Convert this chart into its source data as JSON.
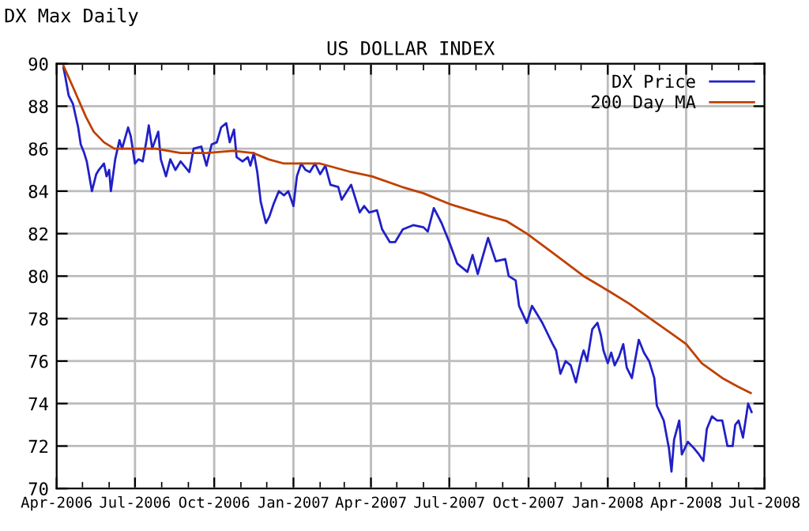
{
  "chart_data": {
    "type": "line",
    "title": "US DOLLAR INDEX",
    "subtitle": "DX Max Daily",
    "xlim": [
      "2006-04-01",
      "2008-07-01"
    ],
    "ylim": [
      70,
      90
    ],
    "yticks": [
      70,
      72,
      74,
      76,
      78,
      80,
      82,
      84,
      86,
      88,
      90
    ],
    "xticks": [
      {
        "value": "2006-04-01",
        "label": "Apr-2006"
      },
      {
        "value": "2006-05-01",
        "label": null
      },
      {
        "value": "2006-06-01",
        "label": null
      },
      {
        "value": "2006-07-01",
        "label": "Jul-2006"
      },
      {
        "value": "2006-08-01",
        "label": null
      },
      {
        "value": "2006-09-01",
        "label": null
      },
      {
        "value": "2006-10-01",
        "label": "Oct-2006"
      },
      {
        "value": "2006-11-01",
        "label": null
      },
      {
        "value": "2006-12-01",
        "label": null
      },
      {
        "value": "2007-01-01",
        "label": "Jan-2007"
      },
      {
        "value": "2007-02-01",
        "label": null
      },
      {
        "value": "2007-03-01",
        "label": null
      },
      {
        "value": "2007-04-01",
        "label": "Apr-2007"
      },
      {
        "value": "2007-05-01",
        "label": null
      },
      {
        "value": "2007-06-01",
        "label": null
      },
      {
        "value": "2007-07-01",
        "label": "Jul-2007"
      },
      {
        "value": "2007-08-01",
        "label": null
      },
      {
        "value": "2007-09-01",
        "label": null
      },
      {
        "value": "2007-10-01",
        "label": "Oct-2007"
      },
      {
        "value": "2007-11-01",
        "label": null
      },
      {
        "value": "2007-12-01",
        "label": null
      },
      {
        "value": "2008-01-01",
        "label": "Jan-2008"
      },
      {
        "value": "2008-02-01",
        "label": null
      },
      {
        "value": "2008-03-01",
        "label": null
      },
      {
        "value": "2008-04-01",
        "label": "Apr-2008"
      },
      {
        "value": "2008-05-01",
        "label": null
      },
      {
        "value": "2008-06-01",
        "label": null
      },
      {
        "value": "2008-07-01",
        "label": "Jul-2008"
      }
    ],
    "grid": true,
    "legend": "top right",
    "marker": "none",
    "line_style": "solid",
    "series": [
      {
        "name": "DX Price",
        "color": "#2020c8",
        "x": [
          "2006-04-09",
          "2006-04-11",
          "2006-04-15",
          "2006-04-20",
          "2006-04-26",
          "2006-04-29",
          "2006-05-03",
          "2006-05-06",
          "2006-05-12",
          "2006-05-17",
          "2006-05-20",
          "2006-05-26",
          "2006-05-29",
          "2006-06-01",
          "2006-06-03",
          "2006-06-08",
          "2006-06-13",
          "2006-06-16",
          "2006-06-23",
          "2006-06-26",
          "2006-07-01",
          "2006-07-05",
          "2006-07-10",
          "2006-07-14",
          "2006-07-17",
          "2006-07-21",
          "2006-07-28",
          "2006-07-31",
          "2006-08-06",
          "2006-08-11",
          "2006-08-17",
          "2006-08-23",
          "2006-09-02",
          "2006-09-07",
          "2006-09-16",
          "2006-09-22",
          "2006-09-28",
          "2006-10-04",
          "2006-10-09",
          "2006-10-15",
          "2006-10-19",
          "2006-10-24",
          "2006-10-27",
          "2006-11-03",
          "2006-11-09",
          "2006-11-12",
          "2006-11-16",
          "2006-11-20",
          "2006-11-24",
          "2006-11-30",
          "2006-12-04",
          "2006-12-09",
          "2006-12-15",
          "2006-12-21",
          "2006-12-26",
          "2007-01-01",
          "2007-01-05",
          "2007-01-10",
          "2007-01-15",
          "2007-01-20",
          "2007-01-26",
          "2007-02-01",
          "2007-02-07",
          "2007-02-13",
          "2007-02-22",
          "2007-02-26",
          "2007-03-09",
          "2007-03-19",
          "2007-03-24",
          "2007-03-30",
          "2007-04-08",
          "2007-04-14",
          "2007-04-23",
          "2007-04-29",
          "2007-05-08",
          "2007-05-20",
          "2007-06-01",
          "2007-06-06",
          "2007-06-13",
          "2007-06-22",
          "2007-07-01",
          "2007-07-10",
          "2007-07-22",
          "2007-07-28",
          "2007-08-03",
          "2007-08-15",
          "2007-08-24",
          "2007-09-04",
          "2007-09-08",
          "2007-09-16",
          "2007-09-20",
          "2007-09-29",
          "2007-10-05",
          "2007-10-11",
          "2007-10-17",
          "2007-10-23",
          "2007-10-29",
          "2007-11-02",
          "2007-11-07",
          "2007-11-13",
          "2007-11-19",
          "2007-11-25",
          "2007-12-01",
          "2007-12-04",
          "2007-12-08",
          "2007-12-14",
          "2007-12-20",
          "2007-12-24",
          "2007-12-27",
          "2008-01-01",
          "2008-01-05",
          "2008-01-09",
          "2008-01-14",
          "2008-01-19",
          "2008-01-23",
          "2008-01-29",
          "2008-02-06",
          "2008-02-12",
          "2008-02-18",
          "2008-02-24",
          "2008-02-27",
          "2008-03-06",
          "2008-03-12",
          "2008-03-15",
          "2008-03-18",
          "2008-03-24",
          "2008-03-27",
          "2008-04-03",
          "2008-04-10",
          "2008-04-16",
          "2008-04-21",
          "2008-04-25",
          "2008-05-01",
          "2008-05-07",
          "2008-05-13",
          "2008-05-19",
          "2008-05-25",
          "2008-05-28",
          "2008-06-01",
          "2008-06-06",
          "2008-06-12",
          "2008-06-16"
        ],
        "values": [
          89.8,
          89.4,
          88.5,
          88.1,
          87.0,
          86.2,
          85.8,
          85.4,
          84.0,
          84.8,
          85.0,
          85.3,
          84.7,
          85.0,
          84.0,
          85.5,
          86.4,
          86.0,
          87.0,
          86.6,
          85.3,
          85.5,
          85.4,
          86.3,
          87.1,
          86.0,
          86.8,
          85.5,
          84.7,
          85.5,
          85.0,
          85.4,
          84.9,
          86.0,
          86.1,
          85.2,
          86.2,
          86.3,
          87.0,
          87.2,
          86.3,
          86.9,
          85.6,
          85.4,
          85.6,
          85.2,
          85.8,
          84.9,
          83.5,
          82.5,
          82.8,
          83.4,
          84.0,
          83.8,
          84.0,
          83.3,
          84.7,
          85.3,
          85.0,
          84.9,
          85.3,
          84.8,
          85.2,
          84.3,
          84.2,
          83.6,
          84.3,
          83.0,
          83.3,
          83.0,
          83.1,
          82.2,
          81.6,
          81.6,
          82.2,
          82.4,
          82.3,
          82.1,
          83.2,
          82.5,
          81.6,
          80.6,
          80.2,
          81.0,
          80.1,
          81.8,
          80.7,
          80.8,
          80.0,
          79.8,
          78.6,
          77.8,
          78.6,
          78.2,
          77.8,
          77.3,
          76.8,
          76.5,
          75.4,
          76.0,
          75.8,
          75.0,
          76.1,
          76.5,
          76.0,
          77.5,
          77.8,
          77.2,
          76.5,
          75.9,
          76.4,
          75.8,
          76.2,
          76.8,
          75.7,
          75.2,
          77.0,
          76.4,
          76.0,
          75.2,
          73.9,
          73.2,
          71.9,
          70.8,
          72.3,
          73.2,
          71.6,
          72.2,
          71.9,
          71.6,
          71.3,
          72.8,
          73.4,
          73.2,
          73.2,
          72.0,
          72.0,
          73.0,
          73.2,
          72.4,
          74.0,
          73.6
        ]
      },
      {
        "name": "200 Day MA",
        "color": "#c04000",
        "x": [
          "2006-04-09",
          "2006-04-20",
          "2006-05-05",
          "2006-05-14",
          "2006-05-26",
          "2006-06-07",
          "2006-07-01",
          "2006-07-25",
          "2006-08-23",
          "2006-09-22",
          "2006-10-23",
          "2006-11-15",
          "2006-12-03",
          "2006-12-21",
          "2007-02-01",
          "2007-03-09",
          "2007-04-02",
          "2007-05-07",
          "2007-06-01",
          "2007-07-01",
          "2007-08-18",
          "2007-09-05",
          "2007-09-29",
          "2007-10-29",
          "2007-12-04",
          "2008-01-02",
          "2008-01-26",
          "2008-02-16",
          "2008-03-15",
          "2008-04-01",
          "2008-04-19",
          "2008-05-13",
          "2008-05-31",
          "2008-06-15"
        ],
        "values": [
          89.9,
          88.9,
          87.5,
          86.8,
          86.3,
          86.0,
          86.0,
          86.0,
          85.8,
          85.8,
          85.9,
          85.8,
          85.5,
          85.3,
          85.3,
          84.9,
          84.7,
          84.2,
          83.9,
          83.4,
          82.8,
          82.6,
          82.0,
          81.1,
          80.0,
          79.3,
          78.7,
          78.1,
          77.3,
          76.8,
          75.9,
          75.2,
          74.8,
          74.5
        ]
      }
    ]
  }
}
